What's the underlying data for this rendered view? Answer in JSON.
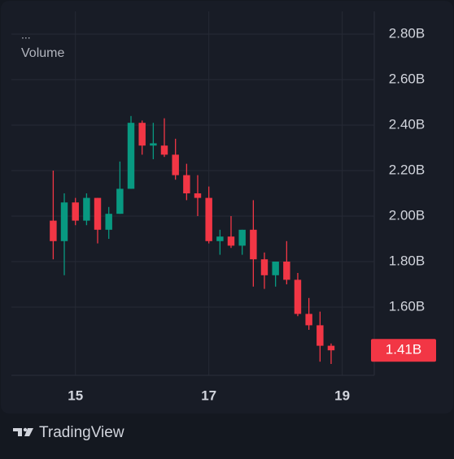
{
  "chart_data": {
    "type": "candlestick",
    "menu_label": "...",
    "indicator_label": "Volume",
    "x": [
      14.667,
      14.833,
      15.0,
      15.167,
      15.333,
      15.5,
      15.667,
      15.833,
      16.0,
      16.167,
      16.333,
      16.5,
      16.667,
      16.833,
      17.0,
      17.167,
      17.333,
      17.5,
      17.667,
      17.833,
      18.0,
      18.167,
      18.333,
      18.5,
      18.667,
      18.833
    ],
    "open": [
      1.98,
      1.89,
      2.06,
      1.98,
      2.08,
      1.94,
      2.01,
      2.12,
      2.41,
      2.31,
      2.31,
      2.27,
      2.18,
      2.1,
      2.08,
      1.89,
      1.91,
      1.87,
      1.94,
      1.81,
      1.74,
      1.8,
      1.72,
      1.57,
      1.52,
      1.43
    ],
    "high": [
      2.2,
      2.1,
      2.08,
      2.1,
      2.08,
      2.04,
      2.24,
      2.44,
      2.42,
      2.41,
      2.43,
      2.34,
      2.23,
      2.18,
      2.13,
      1.94,
      2.0,
      1.94,
      2.07,
      1.84,
      1.8,
      1.89,
      1.75,
      1.64,
      1.58,
      1.44
    ],
    "low": [
      1.81,
      1.74,
      1.96,
      1.96,
      1.88,
      1.9,
      2.01,
      2.12,
      2.27,
      2.25,
      2.26,
      2.16,
      2.07,
      2.0,
      1.88,
      1.83,
      1.86,
      1.83,
      1.69,
      1.68,
      1.69,
      1.7,
      1.56,
      1.5,
      1.36,
      1.35
    ],
    "close": [
      1.89,
      2.06,
      1.98,
      2.08,
      1.94,
      2.01,
      2.12,
      2.41,
      2.31,
      2.32,
      2.27,
      2.18,
      2.1,
      2.08,
      1.89,
      1.91,
      1.87,
      1.94,
      1.81,
      1.74,
      1.8,
      1.72,
      1.57,
      1.52,
      1.43,
      1.41
    ],
    "up_color": "#089981",
    "down_color": "#f23645",
    "xlim": [
      14.04,
      19.48
    ],
    "xticks": [
      15,
      17,
      19
    ],
    "ylim": [
      1.3,
      2.9
    ],
    "yticks": [
      {
        "value": 1.6,
        "label": "1.60B"
      },
      {
        "value": 1.8,
        "label": "1.80B"
      },
      {
        "value": 2.0,
        "label": "2.00B"
      },
      {
        "value": 2.2,
        "label": "2.20B"
      },
      {
        "value": 2.4,
        "label": "2.40B"
      },
      {
        "value": 2.6,
        "label": "2.60B"
      },
      {
        "value": 2.8,
        "label": "2.80B"
      }
    ],
    "last_price": {
      "value": 1.41,
      "label": "1.41B"
    },
    "grid": true
  },
  "footer": {
    "brand": "TradingView"
  }
}
